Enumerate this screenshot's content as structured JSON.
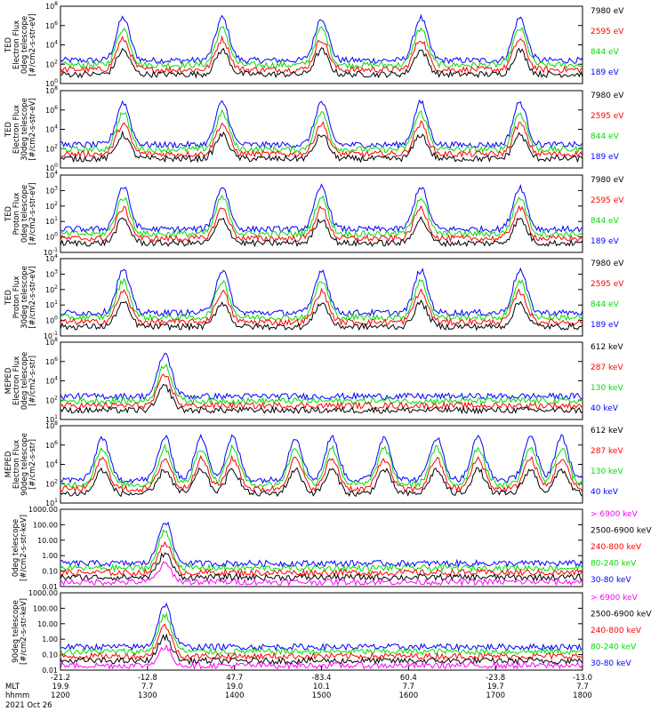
{
  "chart_data": [
    {
      "type": "line",
      "log_scale": true,
      "ylabel": [
        "TED",
        "Electron Flux",
        "0deg telescope",
        "[#/cm2-s-str-eV]"
      ],
      "y_ticks": [
        "10^0",
        "10^2",
        "10^4",
        "10^6",
        "10^8"
      ],
      "series": [
        {
          "name": "7980 eV",
          "color": "#000000"
        },
        {
          "name": "2595 eV",
          "color": "#ff0000"
        },
        {
          "name": "844 eV",
          "color": "#00dd00"
        },
        {
          "name": "189 eV",
          "color": "#0000ff"
        }
      ],
      "bumps": [
        0.12,
        0.31,
        0.5,
        0.69,
        0.88
      ]
    },
    {
      "type": "line",
      "log_scale": true,
      "ylabel": [
        "TED",
        "Electron Flux",
        "30deg telescope",
        "[#/cm2-s-str-eV]"
      ],
      "y_ticks": [
        "10^0",
        "10^2",
        "10^4",
        "10^6",
        "10^8"
      ],
      "series": [
        {
          "name": "7980 eV",
          "color": "#000000"
        },
        {
          "name": "2595 eV",
          "color": "#ff0000"
        },
        {
          "name": "844 eV",
          "color": "#00dd00"
        },
        {
          "name": "189 eV",
          "color": "#0000ff"
        }
      ],
      "bumps": [
        0.12,
        0.31,
        0.5,
        0.69,
        0.88
      ]
    },
    {
      "type": "line",
      "log_scale": true,
      "ylabel": [
        "TED",
        "Proton Flux",
        "0deg telescope",
        "[#/cm2-s-str-eV]"
      ],
      "y_ticks": [
        "10^-1",
        "10^0",
        "10^1",
        "10^2",
        "10^3",
        "10^4"
      ],
      "series": [
        {
          "name": "7980 eV",
          "color": "#000000"
        },
        {
          "name": "2595 eV",
          "color": "#ff0000"
        },
        {
          "name": "844 eV",
          "color": "#00dd00"
        },
        {
          "name": "189 eV",
          "color": "#0000ff"
        }
      ],
      "bumps": [
        0.12,
        0.31,
        0.5,
        0.69,
        0.88
      ]
    },
    {
      "type": "line",
      "log_scale": true,
      "ylabel": [
        "TED",
        "Proton Flux",
        "30deg telescope",
        "[#/cm2-s-str-eV]"
      ],
      "y_ticks": [
        "10^-1",
        "10^0",
        "10^1",
        "10^2",
        "10^3",
        "10^4"
      ],
      "series": [
        {
          "name": "7980 eV",
          "color": "#000000"
        },
        {
          "name": "2595 eV",
          "color": "#ff0000"
        },
        {
          "name": "844 eV",
          "color": "#00dd00"
        },
        {
          "name": "189 eV",
          "color": "#0000ff"
        }
      ],
      "bumps": [
        0.12,
        0.31,
        0.5,
        0.69,
        0.88
      ]
    },
    {
      "type": "line",
      "log_scale": true,
      "ylabel": [
        "MEPED",
        "Electron Flux",
        "0deg telescope",
        "[#/cm2-s-str]"
      ],
      "y_ticks": [
        "10^1",
        "10^2",
        "10^4",
        "10^6",
        "10^8"
      ],
      "series": [
        {
          "name": "612 keV",
          "color": "#000000"
        },
        {
          "name": "287 keV",
          "color": "#ff0000"
        },
        {
          "name": "130 keV",
          "color": "#00dd00"
        },
        {
          "name": "40 keV",
          "color": "#0000ff"
        }
      ],
      "bumps": [
        0.2
      ]
    },
    {
      "type": "line",
      "log_scale": true,
      "ylabel": [
        "MEPED",
        "Electron Flux",
        "90deg telescope",
        "[#/cm2-s-str]"
      ],
      "y_ticks": [
        "10^1",
        "10^2",
        "10^4",
        "10^6",
        "10^8"
      ],
      "series": [
        {
          "name": "612 keV",
          "color": "#000000"
        },
        {
          "name": "287 keV",
          "color": "#ff0000"
        },
        {
          "name": "130 keV",
          "color": "#00dd00"
        },
        {
          "name": "40 keV",
          "color": "#0000ff"
        }
      ],
      "bumps": [
        0.08,
        0.2,
        0.27,
        0.33,
        0.45,
        0.52,
        0.62,
        0.72,
        0.8,
        0.9,
        0.96
      ]
    },
    {
      "type": "line",
      "log_scale": true,
      "ylabel": [
        "0deg telescope",
        "[#/cm2-s-str-keV]"
      ],
      "y_ticks": [
        "0.01",
        "0.10",
        "1.00",
        "10.00",
        "100.00",
        "1000.00"
      ],
      "series": [
        {
          "name": "> 6900 keV",
          "color": "#ff00ff"
        },
        {
          "name": "2500-6900 keV",
          "color": "#000000"
        },
        {
          "name": "240-800 keV",
          "color": "#ff0000"
        },
        {
          "name": "80-240 keV",
          "color": "#00dd00"
        },
        {
          "name": "30-80 keV",
          "color": "#0000ff"
        }
      ],
      "bumps": [
        0.2
      ]
    },
    {
      "type": "line",
      "log_scale": true,
      "ylabel": [
        "90deg telescope",
        "[#/cm2-s-str-keV]"
      ],
      "y_ticks": [
        "0.01",
        "0.10",
        "1.00",
        "10.00",
        "100.00",
        "1000.00"
      ],
      "series": [
        {
          "name": "> 6900 keV",
          "color": "#ff00ff"
        },
        {
          "name": "2500-6900 keV",
          "color": "#000000"
        },
        {
          "name": "240-800 keV",
          "color": "#ff0000"
        },
        {
          "name": "80-240 keV",
          "color": "#00dd00"
        },
        {
          "name": "30-80 keV",
          "color": "#0000ff"
        }
      ],
      "bumps": [
        0.2
      ]
    }
  ],
  "x_axis": {
    "row_labels": [
      "MLT",
      "hhmm"
    ],
    "date": "2021 Oct 26",
    "ticks": [
      {
        "top": "-21.2",
        "mlt": "19.9",
        "time": "1200"
      },
      {
        "top": "-12.8",
        "mlt": "7.7",
        "time": "1300"
      },
      {
        "top": "47.7",
        "mlt": "19.0",
        "time": "1400"
      },
      {
        "top": "-83.4",
        "mlt": "10.1",
        "time": "1500"
      },
      {
        "top": "60.4",
        "mlt": "7.7",
        "time": "1600"
      },
      {
        "top": "-23.8",
        "mlt": "19.7",
        "time": "1700"
      },
      {
        "top": "-13.0",
        "mlt": "7.7",
        "time": "1800"
      }
    ]
  }
}
